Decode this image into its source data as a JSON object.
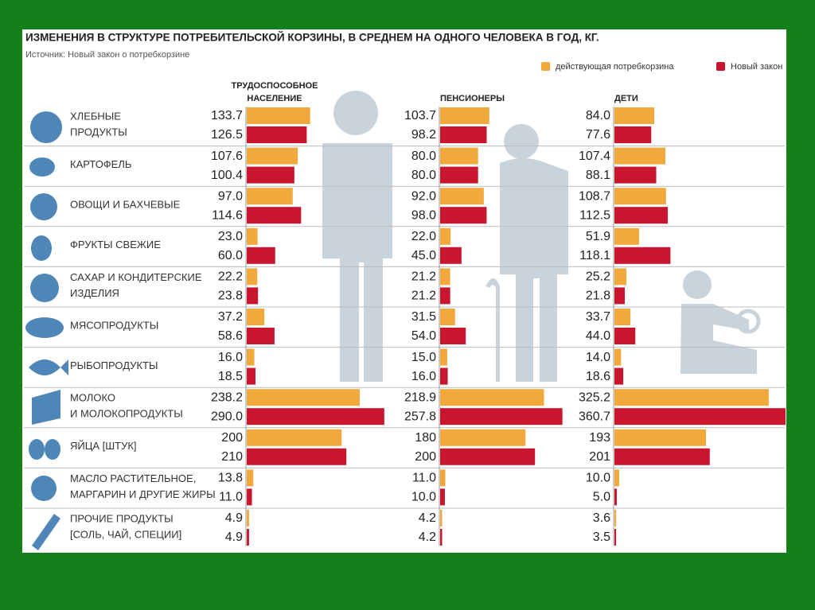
{
  "chart_data": {
    "type": "bar",
    "title": "ИЗМЕНЕНИЯ В СТРУКТУРЕ ПОТРЕБИТЕЛЬСКОЙ КОРЗИНЫ, В СРЕДНЕМ НА ОДНОГО ЧЕЛОВЕКА В ГОД, КГ.",
    "subtitle": "Источник: Новый закон о потребкорзине",
    "series": [
      {
        "name": "действующая потребкорзина",
        "color": "#f2a93b"
      },
      {
        "name": "Новый закон",
        "color": "#c8162e"
      }
    ],
    "categories": [
      [
        "ХЛЕБНЫЕ",
        "ПРОДУКТЫ"
      ],
      [
        "КАРТОФЕЛЬ"
      ],
      [
        "ОВОЩИ И БАХЧЕВЫЕ"
      ],
      [
        "ФРУКТЫ СВЕЖИЕ"
      ],
      [
        "САХАР И КОНДИТЕРСКИЕ",
        "ИЗДЕЛИЯ"
      ],
      [
        "МЯСОПРОДУКТЫ"
      ],
      [
        "РЫБОПРОДУКТЫ"
      ],
      [
        "МОЛОКО",
        "И МОЛОКОПРОДУКТЫ"
      ],
      [
        "ЯЙЦА [ШТУК]"
      ],
      [
        "МАСЛО РАСТИТЕЛЬНОЕ,",
        "МАРГАРИН И ДРУГИЕ ЖИРЫ"
      ],
      [
        "ПРОЧИЕ ПРОДУКТЫ",
        "[СОЛЬ, ЧАЙ, СПЕЦИИ]"
      ]
    ],
    "panels": [
      {
        "title": [
          "ТРУДОСПОСОБНОЕ",
          "НАСЕЛЕНИЕ"
        ],
        "values": [
          [
            133.7,
            107.6,
            97.0,
            23.0,
            22.2,
            37.2,
            16.0,
            238.2,
            200,
            13.8,
            4.9
          ],
          [
            126.5,
            100.4,
            114.6,
            60.0,
            23.8,
            58.6,
            18.5,
            290.0,
            210,
            11.0,
            4.9
          ]
        ],
        "value_labels": [
          [
            "133.7",
            "107.6",
            "97.0",
            "23.0",
            "22.2",
            "37.2",
            "16.0",
            "238.2",
            "200",
            "13.8",
            "4.9"
          ],
          [
            "126.5",
            "100.4",
            "114.6",
            "60.0",
            "23.8",
            "58.6",
            "18.5",
            "290.0",
            "210",
            "11.0",
            "4.9"
          ]
        ]
      },
      {
        "title": [
          "ПЕНСИОНЕРЫ"
        ],
        "values": [
          [
            103.7,
            80.0,
            92.0,
            22.0,
            21.2,
            31.5,
            15.0,
            218.9,
            180,
            11.0,
            4.2
          ],
          [
            98.2,
            80.0,
            98.0,
            45.0,
            21.2,
            54.0,
            16.0,
            257.8,
            200,
            10.0,
            4.2
          ]
        ],
        "value_labels": [
          [
            "103.7",
            "80.0",
            "92.0",
            "22.0",
            "21.2",
            "31.5",
            "15.0",
            "218.9",
            "180",
            "11.0",
            "4.2"
          ],
          [
            "98.2",
            "80.0",
            "98.0",
            "45.0",
            "21.2",
            "54.0",
            "16.0",
            "257.8",
            "200",
            "10.0",
            "4.2"
          ]
        ]
      },
      {
        "title": [
          "ДЕТИ"
        ],
        "values": [
          [
            84.0,
            107.4,
            108.7,
            51.9,
            25.2,
            33.7,
            14.0,
            325.2,
            193,
            10.0,
            3.6
          ],
          [
            77.6,
            88.1,
            112.5,
            118.1,
            21.8,
            44.0,
            18.6,
            360.7,
            201,
            5.0,
            3.5
          ]
        ],
        "value_labels": [
          [
            "84.0",
            "107.4",
            "108.7",
            "51.9",
            "25.2",
            "33.7",
            "14.0",
            "325.2",
            "193",
            "10.0",
            "3.6"
          ],
          [
            "77.6",
            "88.1",
            "112.5",
            "118.1",
            "21.8",
            "44.0",
            "18.6",
            "360.7",
            "201",
            "5.0",
            "3.5"
          ]
        ]
      }
    ]
  }
}
